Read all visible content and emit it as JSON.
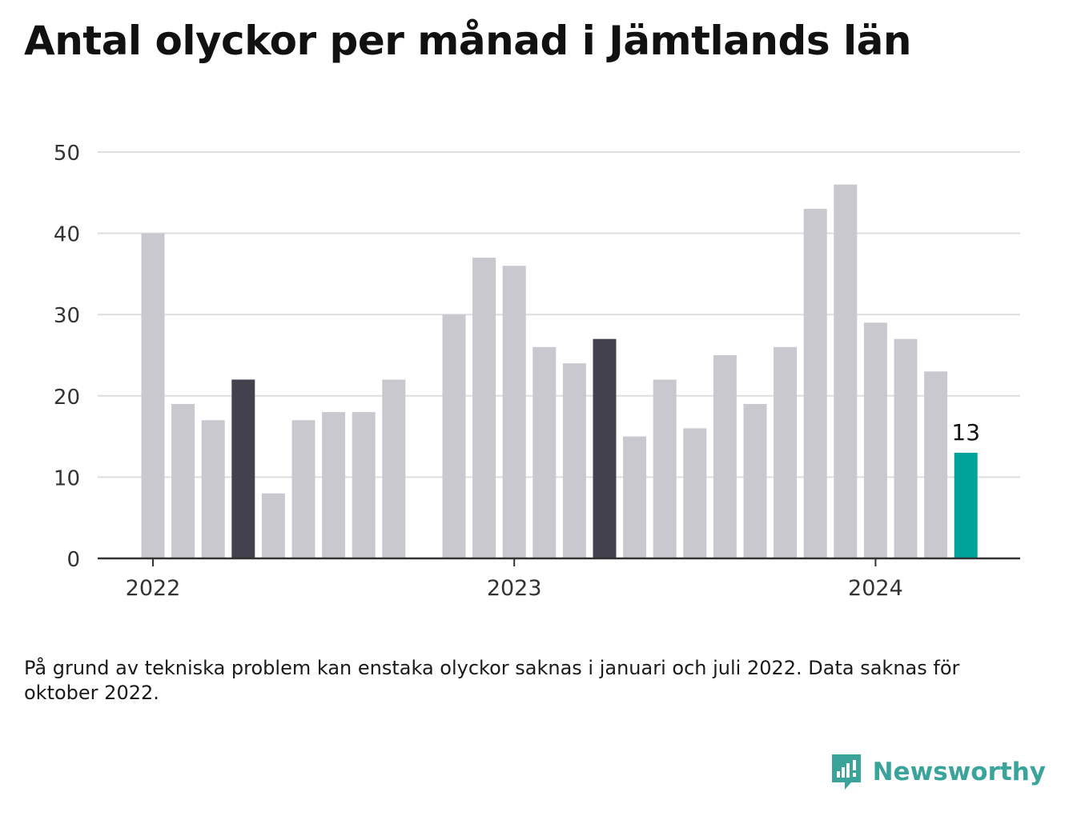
{
  "title": "Antal olyckor per månad i Jämtlands län",
  "note": "På grund av tekniska problem kan enstaka olyckor saknas i januari och juli 2022. Data saknas för oktober 2022.",
  "brand": {
    "name": "Newsworthy",
    "color": "#3aa39a"
  },
  "colors": {
    "bar": "#c9c8cf",
    "highlight": "#43414e",
    "latest": "#00a39a",
    "grid": "#dedede",
    "axis": "#333333"
  },
  "chart_data": {
    "type": "bar",
    "ylim": [
      0,
      50
    ],
    "yticks": [
      0,
      10,
      20,
      30,
      40,
      50
    ],
    "xtick_labels": [
      {
        "label": "2022",
        "at": "2022-01"
      },
      {
        "label": "2023",
        "at": "2023-01"
      },
      {
        "label": "2024",
        "at": "2024-01"
      }
    ],
    "grid": true,
    "bars": [
      {
        "month": "2022-01",
        "value": 40,
        "style": "normal"
      },
      {
        "month": "2022-02",
        "value": 19,
        "style": "normal"
      },
      {
        "month": "2022-03",
        "value": 17,
        "style": "normal"
      },
      {
        "month": "2022-04",
        "value": 22,
        "style": "highlight"
      },
      {
        "month": "2022-05",
        "value": 8,
        "style": "normal"
      },
      {
        "month": "2022-06",
        "value": 17,
        "style": "normal"
      },
      {
        "month": "2022-07",
        "value": 18,
        "style": "normal"
      },
      {
        "month": "2022-08",
        "value": 18,
        "style": "normal"
      },
      {
        "month": "2022-09",
        "value": 22,
        "style": "normal"
      },
      {
        "month": "2022-10",
        "value": null,
        "style": "normal"
      },
      {
        "month": "2022-11",
        "value": 30,
        "style": "normal"
      },
      {
        "month": "2022-12",
        "value": 37,
        "style": "normal"
      },
      {
        "month": "2023-01",
        "value": 36,
        "style": "normal"
      },
      {
        "month": "2023-02",
        "value": 26,
        "style": "normal"
      },
      {
        "month": "2023-03",
        "value": 24,
        "style": "normal"
      },
      {
        "month": "2023-04",
        "value": 27,
        "style": "highlight"
      },
      {
        "month": "2023-05",
        "value": 15,
        "style": "normal"
      },
      {
        "month": "2023-06",
        "value": 22,
        "style": "normal"
      },
      {
        "month": "2023-07",
        "value": 16,
        "style": "normal"
      },
      {
        "month": "2023-08",
        "value": 25,
        "style": "normal"
      },
      {
        "month": "2023-09",
        "value": 19,
        "style": "normal"
      },
      {
        "month": "2023-10",
        "value": 26,
        "style": "normal"
      },
      {
        "month": "2023-11",
        "value": 43,
        "style": "normal"
      },
      {
        "month": "2023-12",
        "value": 46,
        "style": "normal"
      },
      {
        "month": "2024-01",
        "value": 29,
        "style": "normal"
      },
      {
        "month": "2024-02",
        "value": 27,
        "style": "normal"
      },
      {
        "month": "2024-03",
        "value": 23,
        "style": "normal"
      },
      {
        "month": "2024-04",
        "value": 13,
        "style": "latest",
        "label": "13"
      }
    ]
  }
}
